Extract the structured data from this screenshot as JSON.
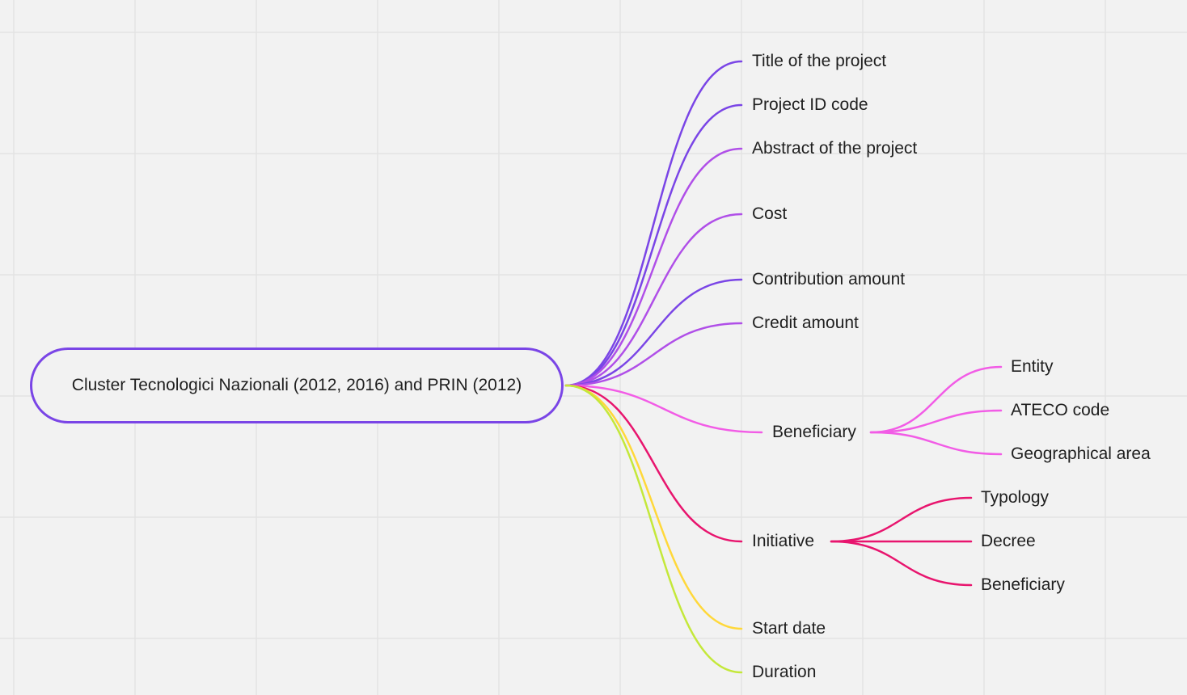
{
  "colors": {
    "background": "#f2f2f2",
    "grid": "#e3e3e3",
    "root_border": "#7a45e6",
    "purple_dark": "#7a45e6",
    "purple_light": "#b04fe8",
    "pink": "#f25ce6",
    "magenta": "#e8156e",
    "yellow": "#ffd83a",
    "lime": "#c4e83a"
  },
  "mindmap": {
    "root": {
      "label": "Cluster Tecnologici Nazionali (2012, 2016) and PRIN (2012)"
    },
    "branches": [
      {
        "label": "Title of the project",
        "color": "purple_dark"
      },
      {
        "label": "Project ID code",
        "color": "purple_dark"
      },
      {
        "label": "Abstract of the project",
        "color": "purple_light"
      },
      {
        "label": "Cost",
        "color": "purple_light"
      },
      {
        "label": "Contribution amount",
        "color": "purple_dark"
      },
      {
        "label": "Credit amount",
        "color": "purple_light"
      },
      {
        "label": "Beneficiary",
        "color": "pink",
        "children": [
          {
            "label": "Entity"
          },
          {
            "label": "ATECO code"
          },
          {
            "label": "Geographical area"
          }
        ]
      },
      {
        "label": "Initiative",
        "color": "magenta",
        "children": [
          {
            "label": "Typology"
          },
          {
            "label": "Decree"
          },
          {
            "label": "Beneficiary"
          }
        ]
      },
      {
        "label": "Start date",
        "color": "yellow"
      },
      {
        "label": "Duration",
        "color": "lime"
      }
    ]
  }
}
